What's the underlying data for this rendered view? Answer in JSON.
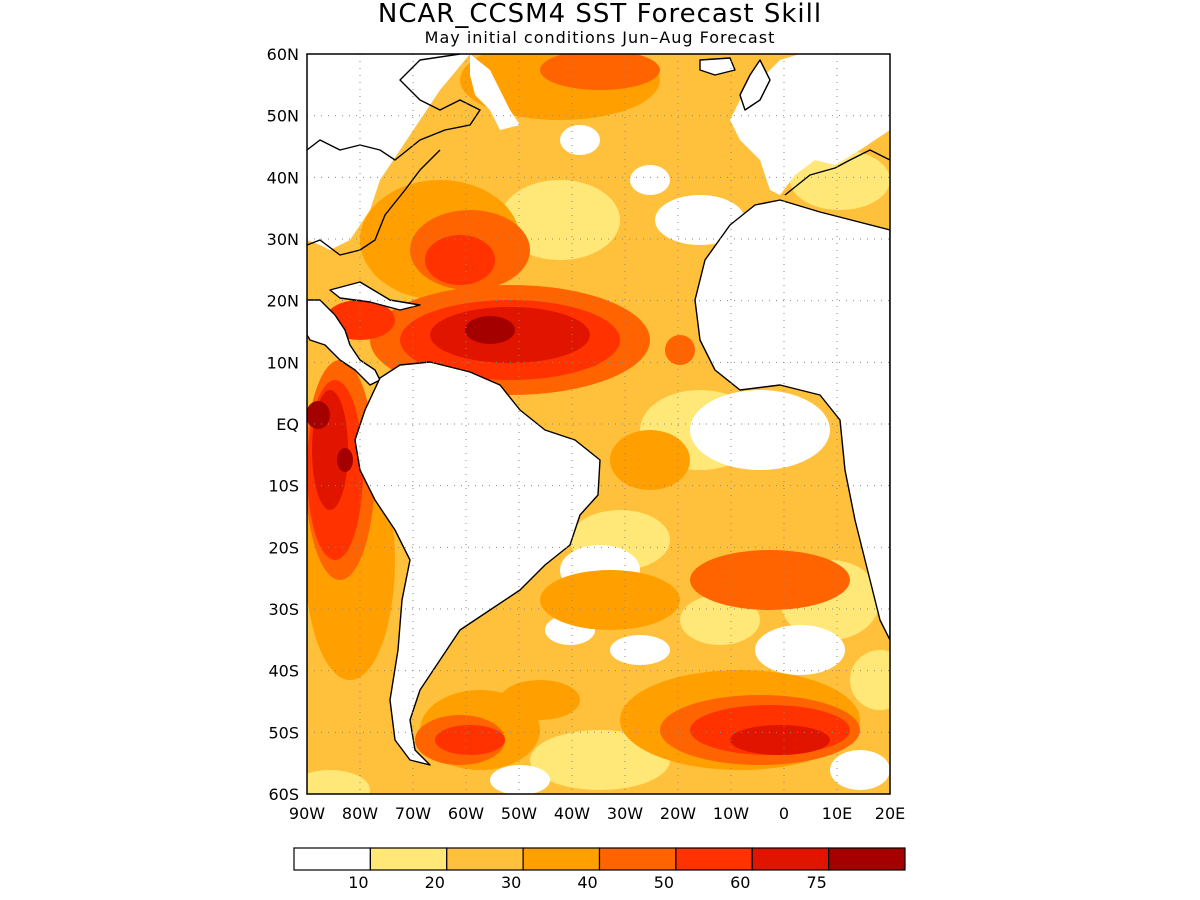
{
  "title": "NCAR_CCSM4 SST Forecast Skill",
  "subtitle": "May initial conditions  Jun–Aug Forecast",
  "map": {
    "lon_range": [
      -90,
      20
    ],
    "lat_range": [
      -60,
      60
    ],
    "lat_ticks": [
      {
        "value": 60,
        "label": "60N"
      },
      {
        "value": 50,
        "label": "50N"
      },
      {
        "value": 40,
        "label": "40N"
      },
      {
        "value": 30,
        "label": "30N"
      },
      {
        "value": 20,
        "label": "20N"
      },
      {
        "value": 10,
        "label": "10N"
      },
      {
        "value": 0,
        "label": "EQ"
      },
      {
        "value": -10,
        "label": "10S"
      },
      {
        "value": -20,
        "label": "20S"
      },
      {
        "value": -30,
        "label": "30S"
      },
      {
        "value": -40,
        "label": "40S"
      },
      {
        "value": -50,
        "label": "50S"
      },
      {
        "value": -60,
        "label": "60S"
      }
    ],
    "lon_ticks": [
      {
        "value": -90,
        "label": "90W"
      },
      {
        "value": -80,
        "label": "80W"
      },
      {
        "value": -70,
        "label": "70W"
      },
      {
        "value": -60,
        "label": "60W"
      },
      {
        "value": -50,
        "label": "50W"
      },
      {
        "value": -40,
        "label": "40W"
      },
      {
        "value": -30,
        "label": "30W"
      },
      {
        "value": -20,
        "label": "20W"
      },
      {
        "value": -10,
        "label": "10W"
      },
      {
        "value": 0,
        "label": "0"
      },
      {
        "value": 10,
        "label": "10E"
      },
      {
        "value": 20,
        "label": "20E"
      }
    ],
    "grid": "dotted",
    "land_color": "#ffffff"
  },
  "legend": {
    "colors": [
      "#ffffff",
      "#ffe878",
      "#ffc03c",
      "#ffa000",
      "#ff6400",
      "#ff3200",
      "#e11400",
      "#a50000"
    ],
    "labels": [
      "10",
      "20",
      "30",
      "40",
      "50",
      "60",
      "75"
    ]
  }
}
